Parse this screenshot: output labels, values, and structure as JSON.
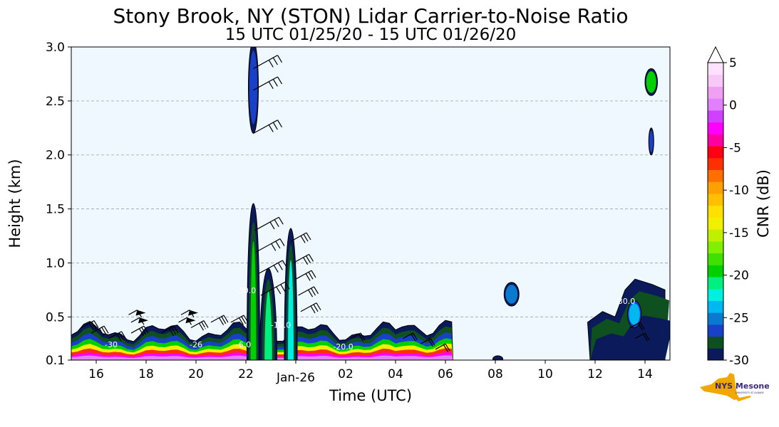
{
  "chart_data": {
    "type": "heatmap",
    "title": "Stony Brook, NY (STON) Lidar Carrier-to-Noise Ratio",
    "subtitle": "15 UTC 01/25/20 - 15 UTC 01/26/20",
    "xlabel": "Time (UTC)",
    "ylabel": "Height (km)",
    "x_ticks": [
      "16",
      "18",
      "20",
      "22",
      "Jan-26",
      "02",
      "04",
      "06",
      "08",
      "10",
      "12",
      "14"
    ],
    "y_ticks": [
      "0.1",
      "0.5",
      "1.0",
      "1.5",
      "2.0",
      "2.5",
      "3.0"
    ],
    "ylim": [
      0.1,
      3.0
    ],
    "grid": "horizontal dashed",
    "colorbar": {
      "label": "CNR (dB)",
      "ticks": [
        "5",
        "0",
        "-5",
        "-10",
        "-15",
        "-20",
        "-25",
        "-30"
      ],
      "range": [
        -30,
        5
      ],
      "extend": "max",
      "colors": [
        "#0a1a5a",
        "#0f5020",
        "#1a40c8",
        "#0a7ad0",
        "#00b8f0",
        "#00f0e0",
        "#00f080",
        "#00d000",
        "#40e000",
        "#80f000",
        "#c0f000",
        "#f0f000",
        "#ffe000",
        "#ffc000",
        "#ffa000",
        "#ff7000",
        "#ff3000",
        "#ff0010",
        "#ff00a0",
        "#ff00ff",
        "#d040ff",
        "#e080ff",
        "#f0a0f0",
        "#f8c8f8",
        "#ffe0ff"
      ]
    },
    "contour_labels": [
      "-30",
      "-26",
      "-30.0",
      "-16.0",
      "-20.0",
      "-6.0",
      "-30.0",
      "-30",
      "-30.0"
    ],
    "features": [
      {
        "desc": "surface layer",
        "x_range": [
          15,
          6
        ],
        "height": [
          0.1,
          0.45
        ]
      },
      {
        "desc": "tall plume",
        "x_hour": 22.3,
        "height": [
          0.1,
          1.55
        ]
      },
      {
        "desc": "tall plume",
        "x_hour": 23.8,
        "height": [
          0.1,
          1.3
        ]
      },
      {
        "desc": "upper cloud",
        "x_hour": 22.3,
        "height": [
          2.2,
          3.0
        ]
      },
      {
        "desc": "patch",
        "x_hour": 8.6,
        "height": [
          0.6,
          0.8
        ]
      },
      {
        "desc": "patch",
        "x_hour": 13.5,
        "height": [
          0.1,
          0.85
        ]
      },
      {
        "desc": "upper patch",
        "x_hour": 14.2,
        "height": [
          2.0,
          2.8
        ]
      }
    ]
  },
  "logo": {
    "text": "NYS Mesonet",
    "subtext": "UNIVERSITY AT ALBANY",
    "colors": {
      "state": "#f0a800",
      "text": "#3b2a7a"
    }
  }
}
